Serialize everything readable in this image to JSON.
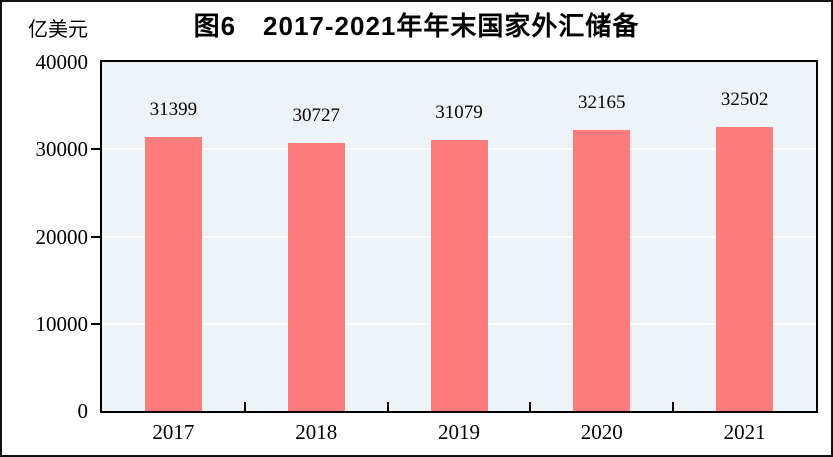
{
  "chart_data": {
    "type": "bar",
    "title": "图6　2017-2021年年末国家外汇储备",
    "unit_label": "亿美元",
    "categories": [
      "2017",
      "2018",
      "2019",
      "2020",
      "2021"
    ],
    "values": [
      31399,
      30727,
      31079,
      32165,
      32502
    ],
    "series": [
      {
        "name": "年末国家外汇储备",
        "values": [
          31399,
          30727,
          31079,
          32165,
          32502
        ]
      }
    ],
    "xlabel": "",
    "ylabel": "亿美元",
    "ylim": [
      0,
      40000
    ],
    "yticks": [
      0,
      10000,
      20000,
      30000,
      40000
    ],
    "grid": "horizontal-white-lines",
    "legend": "none",
    "data_labels_shown": true,
    "colors": {
      "bar": "#FE7C7C",
      "plot_background": "#EDF3F7",
      "gridline": "#FFFFFF",
      "axis": "#000000",
      "text": "#000000",
      "frame_border": "#111111"
    }
  }
}
